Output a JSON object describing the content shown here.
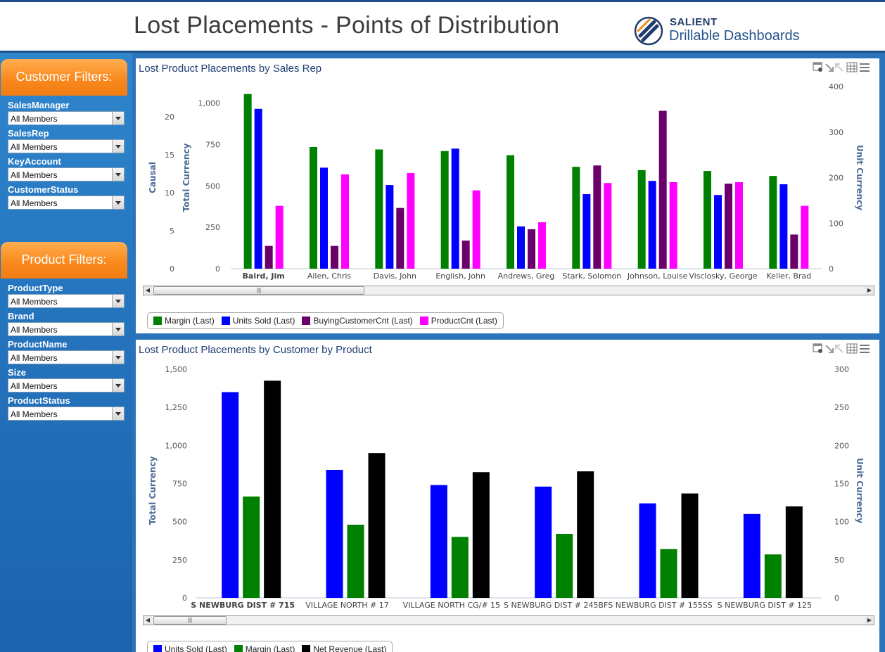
{
  "header": {
    "title": "Lost Placements - Points of Distribution",
    "logo_name": "SALIENT",
    "logo_tagline": "Drillable Dashboards"
  },
  "customer_filters": {
    "title": "Customer Filters:",
    "fields": [
      {
        "label": "SalesManager",
        "value": "All Members"
      },
      {
        "label": "SalesRep",
        "value": "All Members"
      },
      {
        "label": "KeyAccount",
        "value": "All Members"
      },
      {
        "label": "CustomerStatus",
        "value": "All Members"
      }
    ]
  },
  "product_filters": {
    "title": "Product Filters:",
    "fields": [
      {
        "label": "ProductType",
        "value": "All Members"
      },
      {
        "label": "Brand",
        "value": "All Members"
      },
      {
        "label": "ProductName",
        "value": "All Members"
      },
      {
        "label": "Size",
        "value": "All Members"
      },
      {
        "label": "ProductStatus",
        "value": "All Members"
      }
    ]
  },
  "chart_data": [
    {
      "type": "bar",
      "title": "Lost Product Placements by Sales Rep",
      "categories": [
        "Baird, Jim",
        "Allen, Chris",
        "Davis, John",
        "English, John",
        "Andrews, Greg",
        "Stark, Solomon",
        "Johnson, Louise",
        "Visclosky, George",
        "Keller, Brad"
      ],
      "selected_category": "Baird, Jim",
      "series": [
        {
          "name": "Margin (Last)",
          "color": "#008000",
          "axis": "Total Currency",
          "values": [
            1055,
            735,
            720,
            710,
            685,
            615,
            595,
            590,
            560
          ]
        },
        {
          "name": "Units Sold (Last)",
          "color": "#0000ff",
          "axis": "Total Currency",
          "values": [
            965,
            610,
            505,
            725,
            255,
            450,
            530,
            445,
            510
          ]
        },
        {
          "name": "BuyingCustomerCnt (Last)",
          "color": "#6b006b",
          "axis": "Causal",
          "values": [
            3,
            3,
            8,
            3.7,
            5.2,
            13.6,
            20.8,
            11.2,
            4.5
          ]
        },
        {
          "name": "ProductCnt (Last)",
          "color": "#ff00ff",
          "axis": "Unit Currency",
          "values": [
            138,
            207,
            210,
            172,
            102,
            188,
            190,
            190,
            138
          ]
        }
      ],
      "axes": {
        "causal": {
          "label": "Causal",
          "ticks": [
            "0",
            "5",
            "10",
            "15",
            "20"
          ],
          "range": [
            0,
            24
          ]
        },
        "total_currency": {
          "label": "Total Currency",
          "ticks": [
            "0",
            "250",
            "500",
            "750",
            "1,000"
          ],
          "range": [
            0,
            1100
          ]
        },
        "unit_currency": {
          "label": "Unit Currency",
          "ticks": [
            "0",
            "100",
            "200",
            "300",
            "400"
          ],
          "range": [
            0,
            400
          ]
        }
      }
    },
    {
      "type": "bar",
      "title": "Lost Product Placements by Customer by Product",
      "categories": [
        "S NEWBURG DIST # 715",
        "VILLAGE NORTH # 17",
        "VILLAGE NORTH CG/# 15",
        "S NEWBURG DIST # 245BF",
        "S NEWBURG DIST # 155SS",
        "S NEWBURG DIST # 125"
      ],
      "selected_category": "S NEWBURG DIST # 715",
      "series": [
        {
          "name": "Units Sold (Last)",
          "color": "#0000ff",
          "axis": "Total Currency",
          "values": [
            1350,
            840,
            740,
            730,
            620,
            550
          ]
        },
        {
          "name": "Margin (Last)",
          "color": "#008000",
          "axis": "Total Currency",
          "values": [
            665,
            480,
            400,
            420,
            320,
            285
          ]
        },
        {
          "name": "Net Revenue (Last)",
          "color": "#000000",
          "axis": "Unit Currency",
          "values": [
            285,
            190,
            165,
            166,
            137,
            120
          ]
        }
      ],
      "axes": {
        "total_currency": {
          "label": "Total Currency",
          "ticks": [
            "0",
            "250",
            "500",
            "750",
            "1,000",
            "1,250",
            "1,500"
          ],
          "range": [
            0,
            1500
          ]
        },
        "unit_currency": {
          "label": "Unit Currency",
          "ticks": [
            "0",
            "50",
            "100",
            "150",
            "200",
            "250",
            "300"
          ],
          "range": [
            0,
            300
          ]
        }
      }
    }
  ]
}
